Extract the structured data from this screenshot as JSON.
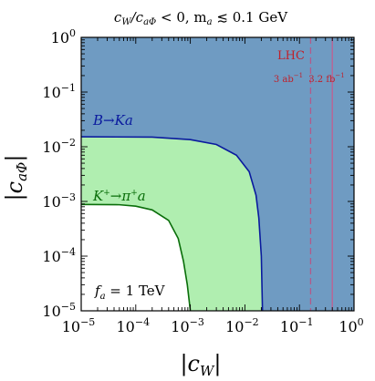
{
  "chart_data": {
    "type": "area",
    "title": "c_W/c_aΦ < 0,  m_a ≲ 0.1 GeV",
    "title_parts": {
      "ratio_num": "c",
      "ratio_num_sub": "W",
      "ratio_den": "/c",
      "ratio_den_sub": "aΦ",
      "lt": " < 0,   m",
      "ma_sub": "a",
      "rest": " ≲ 0.1 GeV"
    },
    "xlabel": "|c_W|",
    "ylabel": "|c_aΦ|",
    "xlabel_parts": {
      "main": "|c",
      "sub": "W",
      "end": "|"
    },
    "ylabel_parts": {
      "main": "|c",
      "sub": "aΦ",
      "end": "|"
    },
    "x_scale": "log",
    "y_scale": "log",
    "xlim": [
      1e-05,
      1
    ],
    "ylim": [
      1e-05,
      1
    ],
    "x_ticks": [
      {
        "value": 1e-05,
        "base": "10",
        "exp": "−5"
      },
      {
        "value": 0.0001,
        "base": "10",
        "exp": "−4"
      },
      {
        "value": 0.001,
        "base": "10",
        "exp": "−3"
      },
      {
        "value": 0.01,
        "base": "10",
        "exp": "−2"
      },
      {
        "value": 0.1,
        "base": "10",
        "exp": "−1"
      },
      {
        "value": 1,
        "base": "10",
        "exp": "0"
      }
    ],
    "y_ticks": [
      {
        "value": 1e-05,
        "base": "10",
        "exp": "−5"
      },
      {
        "value": 0.0001,
        "base": "10",
        "exp": "−4"
      },
      {
        "value": 0.001,
        "base": "10",
        "exp": "−3"
      },
      {
        "value": 0.01,
        "base": "10",
        "exp": "−2"
      },
      {
        "value": 0.1,
        "base": "10",
        "exp": "−1"
      },
      {
        "value": 1,
        "base": "10",
        "exp": "0"
      }
    ],
    "grid": false,
    "regions": [
      {
        "name": "B→Ka",
        "label_parts": {
          "a": "B",
          "arrow": "→",
          "b": "Ka"
        },
        "fill": "#6f9bc2",
        "stroke": "#0a1a9e",
        "boundary": [
          [
            1e-05,
            0.0152
          ],
          [
            0.0002,
            0.015
          ],
          [
            0.001,
            0.0135
          ],
          [
            0.003,
            0.011
          ],
          [
            0.007,
            0.007
          ],
          [
            0.012,
            0.0035
          ],
          [
            0.016,
            0.0013
          ],
          [
            0.018,
            0.0005
          ],
          [
            0.02,
            0.0001
          ],
          [
            0.021,
            1e-05
          ]
        ]
      },
      {
        "name": "K⁺→π⁺a",
        "label_parts": {
          "a": "K",
          "a_sup": "+",
          "arrow": "→",
          "b": "π",
          "b_sup": "+",
          "c": "a"
        },
        "fill": "#b0eeb0",
        "stroke": "#0a6e0a",
        "boundary": [
          [
            1e-05,
            0.00088
          ],
          [
            5e-05,
            0.00087
          ],
          [
            0.0001,
            0.00082
          ],
          [
            0.0002,
            0.0007
          ],
          [
            0.0004,
            0.00045
          ],
          [
            0.0006,
            0.00021
          ],
          [
            0.00075,
            8e-05
          ],
          [
            0.00088,
            3e-05
          ],
          [
            0.001,
            1e-05
          ]
        ]
      }
    ],
    "vertical_lines": [
      {
        "x": 0.16,
        "style": "dashed",
        "color": "#b35a8a",
        "label": "3 ab⁻¹"
      },
      {
        "x": 0.4,
        "style": "solid",
        "color": "#c06090",
        "label": "3.2 fb⁻¹"
      }
    ],
    "annotations": {
      "lhc": "LHC",
      "lhc_3ab": {
        "main": "3 ab",
        "sup": "−1"
      },
      "lhc_32fb": {
        "main": "3.2 fb",
        "sup": "−1"
      },
      "fa": {
        "main": "f",
        "sub": "a",
        "rest": " = 1 TeV"
      }
    },
    "colors": {
      "lhc_text": "#c0202a",
      "frame": "#000000",
      "background": "#ffffff"
    }
  }
}
